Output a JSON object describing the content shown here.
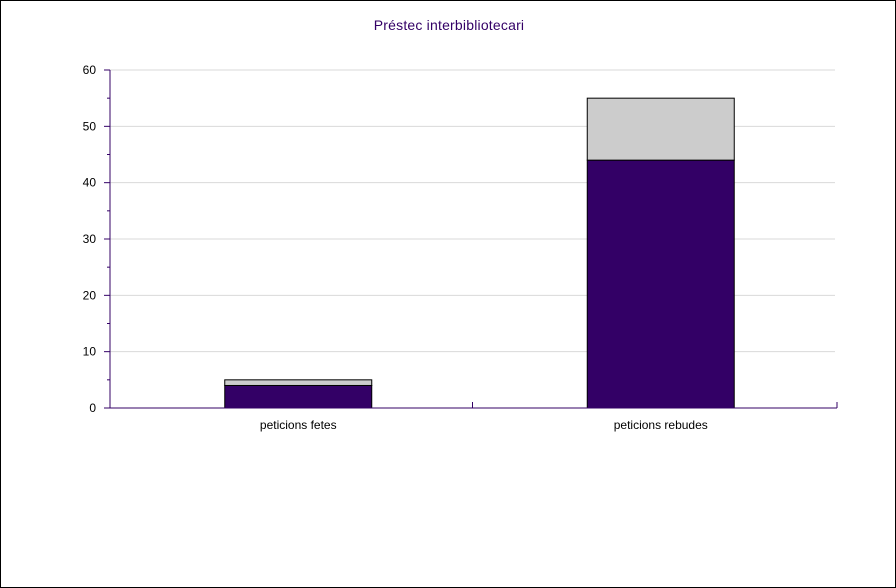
{
  "chart_data": {
    "type": "bar",
    "stacked": true,
    "title": "Préstec interbibliotecari",
    "categories": [
      "peticions fetes",
      "peticions rebudes"
    ],
    "series": [
      {
        "values": [
          4,
          44
        ],
        "color": "#330066"
      },
      {
        "values": [
          1,
          11
        ],
        "color": "#cccccc"
      }
    ],
    "ylim": [
      0,
      60
    ],
    "yticks": [
      "0",
      "10",
      "20",
      "30",
      "40",
      "50",
      "60"
    ],
    "grid": true,
    "axis_color": "#330066"
  }
}
